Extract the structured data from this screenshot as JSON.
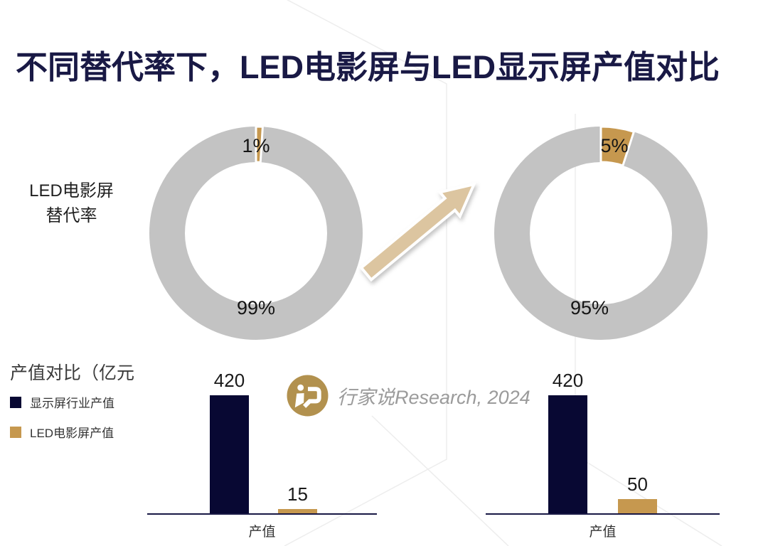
{
  "title": "不同替代率下，LED电影屏与LED显示屏产值对比",
  "donut_section": {
    "axis_label_lines": [
      "LED电影屏",
      "替代率"
    ]
  },
  "value_section": {
    "heading": "产值对比（亿元",
    "legend": [
      {
        "label": "显示屏行业产值",
        "color": "#080833"
      },
      {
        "label": "LED电影屏产值",
        "color": "#C6984F"
      }
    ]
  },
  "watermark": {
    "text": "行家说Research, 2024"
  },
  "colors": {
    "title_navy": "#191945",
    "bar_navy": "#080833",
    "gold": "#C6984F",
    "donut_gray": "#C3C3C3",
    "arrow_tan": "#DCC5A0",
    "logo_gold": "#B2914E",
    "watermark_gray": "#9B9B9B",
    "axis_navy": "#191945"
  },
  "chart_data": [
    {
      "type": "pie",
      "donut": true,
      "labels": [
        "LED电影屏",
        "LED显示屏"
      ],
      "values": [
        1,
        99
      ],
      "annotations": [
        "1%",
        "99%"
      ],
      "colors": [
        "#C6984F",
        "#C3C3C3"
      ]
    },
    {
      "type": "pie",
      "donut": true,
      "labels": [
        "LED电影屏",
        "LED显示屏"
      ],
      "values": [
        5,
        95
      ],
      "annotations": [
        "5%",
        "95%"
      ],
      "colors": [
        "#C6984F",
        "#C3C3C3"
      ]
    },
    {
      "type": "bar",
      "categories": [
        "产值"
      ],
      "ylim": [
        0,
        420
      ],
      "series": [
        {
          "name": "显示屏行业产值",
          "values": [
            420
          ],
          "color": "#080833"
        },
        {
          "name": "LED电影屏产值",
          "values": [
            15
          ],
          "color": "#C6984F"
        }
      ]
    },
    {
      "type": "bar",
      "categories": [
        "产值"
      ],
      "ylim": [
        0,
        420
      ],
      "series": [
        {
          "name": "显示屏行业产值",
          "values": [
            420
          ],
          "color": "#080833"
        },
        {
          "name": "LED电影屏产值",
          "values": [
            50
          ],
          "color": "#C6984F"
        }
      ]
    }
  ]
}
